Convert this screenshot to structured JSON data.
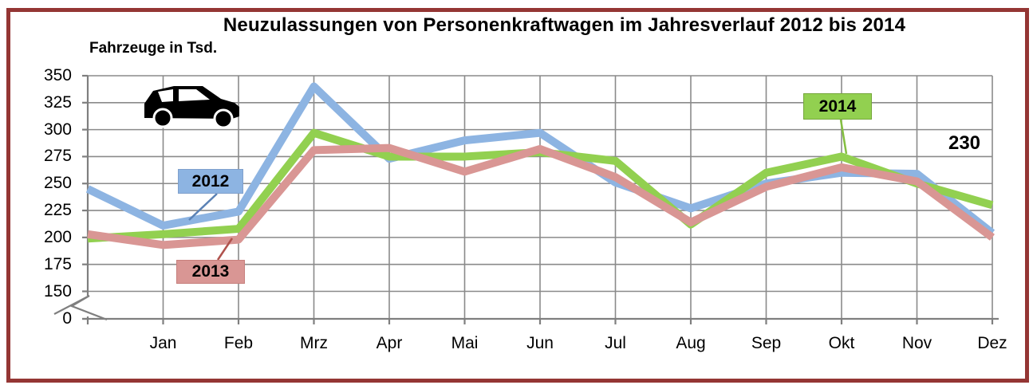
{
  "frame": {
    "border_color": "#943634",
    "background": "#FFFFFF"
  },
  "chart_data": {
    "type": "line",
    "title": "Neuzulassungen von Personenkraftwagen im Jahresverlauf 2012 bis 2014",
    "ylabel": "Fahrzeuge in Tsd.",
    "xlabel": "",
    "categories": [
      "",
      "Jan",
      "Feb",
      "Mrz",
      "Apr",
      "Mai",
      "Jun",
      "Jul",
      "Aug",
      "Sep",
      "Okt",
      "Nov",
      "Dez"
    ],
    "series": [
      {
        "name": "2012",
        "color": "#8DB4E2",
        "values": [
          245,
          211,
          224,
          340,
          273,
          290,
          297,
          251,
          227,
          250,
          260,
          259,
          204
        ]
      },
      {
        "name": "2013",
        "color": "#D99694",
        "values": [
          203,
          193,
          198,
          281,
          283,
          261,
          282,
          256,
          214,
          247,
          265,
          252,
          200
        ]
      },
      {
        "name": "2014",
        "color": "#92D050",
        "values": [
          199,
          203,
          208,
          297,
          275,
          275,
          279,
          271,
          212,
          260,
          275,
          250,
          230
        ]
      }
    ],
    "y_ticks": [
      350,
      325,
      300,
      275,
      250,
      225,
      200,
      175,
      150,
      0
    ],
    "y_axis_break": true,
    "ylim": [
      150,
      350
    ],
    "grid": true,
    "legend_position": "boxes with leader lines pointing to the lines",
    "annotations": [
      {
        "text": "230",
        "series": "2014",
        "category": "Dez"
      }
    ]
  },
  "icons": {
    "car": "car-icon"
  }
}
